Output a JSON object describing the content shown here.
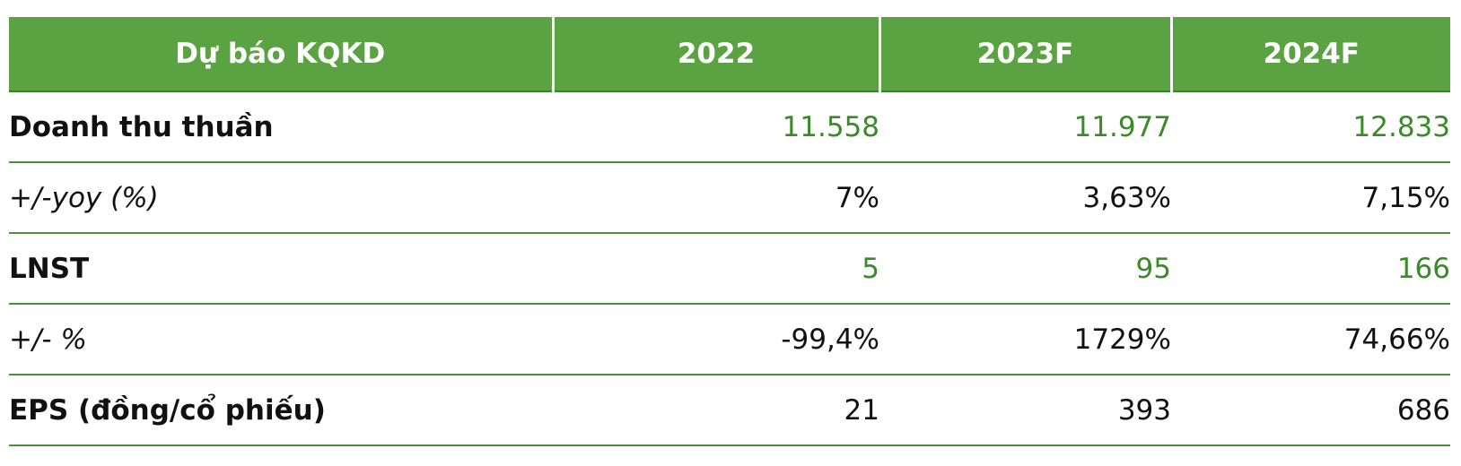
{
  "table": {
    "header": [
      "Dự báo KQKD",
      "2022",
      "2023F",
      "2024F"
    ],
    "rows": [
      [
        "Doanh thu thuần",
        "11.558",
        "11.977",
        "12.833"
      ],
      [
        "+/-yoy (%)",
        "7%",
        "3,63%",
        "7,15%"
      ],
      [
        "LNST",
        "5",
        "95",
        "166"
      ],
      [
        "+/- %",
        "-99,4%",
        "1729%",
        "74,66%"
      ],
      [
        "EPS (đồng/cổ phiếu)",
        "21",
        "393",
        "686"
      ]
    ]
  }
}
